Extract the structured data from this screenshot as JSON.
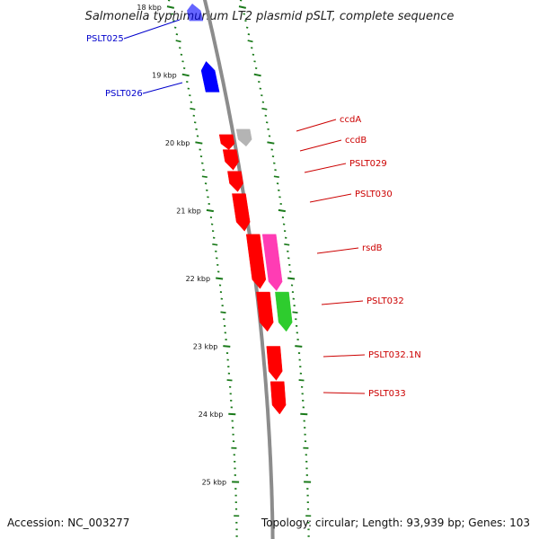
{
  "title": "Salmonella typhimurium LT2 plasmid pSLT, complete sequence",
  "footer": {
    "accession": "Accession: NC_003277",
    "summary": "Topology: circular; Length: 93,939 bp; Genes: 103"
  },
  "colors": {
    "backbone": "#8c8c8c",
    "tick": "#1a7a1a",
    "forward_gene": "#0000ff",
    "reverse_gene": "#ff0000",
    "unknown_gene": "#b4b4b4",
    "regulatory_gene": "#ff3cb4",
    "other_gene": "#2ecc2e",
    "forward_label": "#0000cc",
    "reverse_label": "#cc0000"
  },
  "kbp_marks": [
    {
      "kbp": 18,
      "label": "18 kbp"
    },
    {
      "kbp": 19,
      "label": "19 kbp"
    },
    {
      "kbp": 20,
      "label": "20 kbp"
    },
    {
      "kbp": 21,
      "label": "21 kbp"
    },
    {
      "kbp": 22,
      "label": "22 kbp"
    },
    {
      "kbp": 23,
      "label": "23 kbp"
    },
    {
      "kbp": 24,
      "label": "24 kbp"
    },
    {
      "kbp": 25,
      "label": "25 kbp"
    }
  ],
  "genes": [
    {
      "id": "PSLT025",
      "label": "PSLT025",
      "strand": "forward",
      "type": "forward_gene",
      "start_kbp": 17.95,
      "end_kbp": 18.2
    },
    {
      "id": "PSLT026",
      "label": "PSLT026",
      "strand": "forward",
      "type": "forward_gene",
      "start_kbp": 18.8,
      "end_kbp": 19.25
    },
    {
      "id": "ccdA",
      "label": "ccdA",
      "strand": "reverse",
      "type": "unknown_gene",
      "start_kbp": 19.8,
      "end_kbp": 20.05
    },
    {
      "id": "ccdB",
      "label": "ccdB",
      "strand": "reverse",
      "type": "reverse_gene",
      "start_kbp": 19.88,
      "end_kbp": 20.1
    },
    {
      "id": "PSLT029",
      "label": "PSLT029",
      "strand": "reverse",
      "type": "reverse_gene",
      "start_kbp": 20.1,
      "end_kbp": 20.4
    },
    {
      "id": "PSLT030",
      "label": "PSLT030",
      "strand": "reverse",
      "type": "reverse_gene",
      "start_kbp": 20.42,
      "end_kbp": 20.72
    },
    {
      "id": "PSLT030b",
      "label": "",
      "strand": "reverse",
      "type": "reverse_gene",
      "start_kbp": 20.75,
      "end_kbp": 21.3
    },
    {
      "id": "rsdB",
      "label": "rsdB",
      "strand": "reverse",
      "type": "regulatory_gene",
      "start_kbp": 21.35,
      "end_kbp": 22.18
    },
    {
      "id": "PSLT032",
      "label": "PSLT032",
      "strand": "reverse",
      "type": "other_gene",
      "start_kbp": 22.2,
      "end_kbp": 22.78
    },
    {
      "id": "PSLT032a",
      "label": "",
      "strand": "reverse",
      "type": "reverse_gene",
      "start_kbp": 21.35,
      "end_kbp": 22.15
    },
    {
      "id": "PSLT032b",
      "label": "",
      "strand": "reverse",
      "type": "reverse_gene",
      "start_kbp": 22.2,
      "end_kbp": 22.78
    },
    {
      "id": "PSLT032.1N",
      "label": "PSLT032.1N",
      "strand": "reverse",
      "type": "reverse_gene",
      "start_kbp": 23.0,
      "end_kbp": 23.5
    },
    {
      "id": "PSLT033",
      "label": "PSLT033",
      "strand": "reverse",
      "type": "reverse_gene",
      "start_kbp": 23.52,
      "end_kbp": 24.0
    }
  ]
}
